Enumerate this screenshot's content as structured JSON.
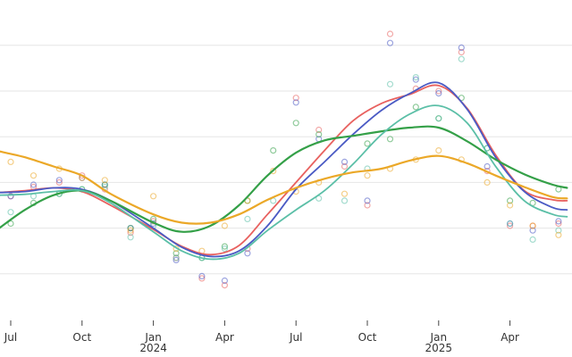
{
  "chart_data": {
    "type": "scatter",
    "title": "",
    "xlabel": "",
    "ylabel": "",
    "ylim": [
      0,
      7
    ],
    "yticks": [
      1,
      2,
      3,
      4,
      5,
      6
    ],
    "x_axis_labels": [
      {
        "label": "Jul",
        "year": "",
        "t": 2023.5
      },
      {
        "label": "Oct",
        "year": "",
        "t": 2023.75
      },
      {
        "label": "Jan",
        "year": "2024",
        "t": 2024.0
      },
      {
        "label": "Apr",
        "year": "",
        "t": 2024.25
      },
      {
        "label": "Jul",
        "year": "",
        "t": 2024.5
      },
      {
        "label": "Oct",
        "year": "",
        "t": 2024.75
      },
      {
        "label": "Jan",
        "year": "2025",
        "t": 2025.0
      },
      {
        "label": "Apr",
        "year": "",
        "t": 2025.25
      }
    ],
    "xlim": [
      2023.46,
      2025.45
    ],
    "series": [
      {
        "name": "red",
        "color": "#e8615f",
        "points": [
          [
            2023.5,
            2.7
          ],
          [
            2023.58,
            2.9
          ],
          [
            2023.67,
            3.0
          ],
          [
            2023.75,
            3.15
          ],
          [
            2023.83,
            2.85
          ],
          [
            2023.92,
            1.9
          ],
          [
            2024.0,
            2.15
          ],
          [
            2024.08,
            1.35
          ],
          [
            2024.17,
            0.9
          ],
          [
            2024.25,
            0.75
          ],
          [
            2024.33,
            1.55
          ],
          [
            2024.5,
            4.85
          ],
          [
            2024.58,
            4.15
          ],
          [
            2024.67,
            3.35
          ],
          [
            2024.75,
            2.5
          ],
          [
            2024.83,
            6.25
          ],
          [
            2024.92,
            5.05
          ],
          [
            2025.0,
            5.0
          ],
          [
            2025.08,
            5.85
          ],
          [
            2025.17,
            3.25
          ],
          [
            2025.25,
            2.05
          ],
          [
            2025.33,
            2.05
          ],
          [
            2025.42,
            2.1
          ]
        ],
        "curve": [
          [
            2023.46,
            2.78
          ],
          [
            2023.55,
            2.82
          ],
          [
            2023.65,
            2.88
          ],
          [
            2023.75,
            2.8
          ],
          [
            2023.85,
            2.5
          ],
          [
            2024.0,
            1.97
          ],
          [
            2024.1,
            1.6
          ],
          [
            2024.2,
            1.42
          ],
          [
            2024.3,
            1.62
          ],
          [
            2024.4,
            2.3
          ],
          [
            2024.5,
            3.0
          ],
          [
            2024.6,
            3.7
          ],
          [
            2024.7,
            4.35
          ],
          [
            2024.8,
            4.73
          ],
          [
            2024.9,
            4.93
          ],
          [
            2025.0,
            5.12
          ],
          [
            2025.1,
            4.62
          ],
          [
            2025.2,
            3.6
          ],
          [
            2025.3,
            2.82
          ],
          [
            2025.4,
            2.62
          ],
          [
            2025.45,
            2.6
          ]
        ]
      },
      {
        "name": "blue",
        "color": "#4a5ac4",
        "points": [
          [
            2023.5,
            2.7
          ],
          [
            2023.58,
            2.95
          ],
          [
            2023.67,
            3.05
          ],
          [
            2023.75,
            3.1
          ],
          [
            2023.83,
            2.95
          ],
          [
            2023.92,
            2.0
          ],
          [
            2024.0,
            2.1
          ],
          [
            2024.08,
            1.3
          ],
          [
            2024.17,
            0.95
          ],
          [
            2024.25,
            0.85
          ],
          [
            2024.33,
            1.45
          ],
          [
            2024.5,
            4.75
          ],
          [
            2024.58,
            3.95
          ],
          [
            2024.67,
            3.45
          ],
          [
            2024.75,
            2.6
          ],
          [
            2024.83,
            6.05
          ],
          [
            2024.92,
            5.25
          ],
          [
            2025.0,
            4.95
          ],
          [
            2025.08,
            5.95
          ],
          [
            2025.17,
            3.35
          ],
          [
            2025.25,
            2.1
          ],
          [
            2025.33,
            1.95
          ],
          [
            2025.42,
            2.15
          ]
        ],
        "curve": [
          [
            2023.46,
            2.78
          ],
          [
            2023.55,
            2.8
          ],
          [
            2023.65,
            2.88
          ],
          [
            2023.75,
            2.85
          ],
          [
            2023.85,
            2.6
          ],
          [
            2024.0,
            2.0
          ],
          [
            2024.1,
            1.58
          ],
          [
            2024.2,
            1.38
          ],
          [
            2024.3,
            1.5
          ],
          [
            2024.4,
            2.05
          ],
          [
            2024.5,
            2.85
          ],
          [
            2024.6,
            3.45
          ],
          [
            2024.7,
            4.05
          ],
          [
            2024.8,
            4.58
          ],
          [
            2024.9,
            4.95
          ],
          [
            2025.0,
            5.18
          ],
          [
            2025.1,
            4.6
          ],
          [
            2025.2,
            3.55
          ],
          [
            2025.3,
            2.8
          ],
          [
            2025.4,
            2.45
          ],
          [
            2025.45,
            2.4
          ]
        ]
      },
      {
        "name": "green",
        "color": "#34a048",
        "points": [
          [
            2023.5,
            2.1
          ],
          [
            2023.58,
            2.55
          ],
          [
            2023.67,
            2.75
          ],
          [
            2023.75,
            2.85
          ],
          [
            2023.83,
            2.95
          ],
          [
            2023.92,
            2.0
          ],
          [
            2024.0,
            2.2
          ],
          [
            2024.08,
            1.45
          ],
          [
            2024.17,
            1.35
          ],
          [
            2024.25,
            1.6
          ],
          [
            2024.33,
            2.6
          ],
          [
            2024.42,
            3.7
          ],
          [
            2024.5,
            4.3
          ],
          [
            2024.58,
            4.05
          ],
          [
            2024.75,
            3.85
          ],
          [
            2024.83,
            3.95
          ],
          [
            2024.92,
            4.65
          ],
          [
            2025.0,
            4.4
          ],
          [
            2025.08,
            4.85
          ],
          [
            2025.17,
            3.75
          ],
          [
            2025.25,
            2.6
          ],
          [
            2025.33,
            2.55
          ],
          [
            2025.42,
            2.85
          ]
        ],
        "curve": [
          [
            2023.46,
            2.0
          ],
          [
            2023.55,
            2.4
          ],
          [
            2023.65,
            2.72
          ],
          [
            2023.75,
            2.82
          ],
          [
            2023.85,
            2.6
          ],
          [
            2024.0,
            2.12
          ],
          [
            2024.1,
            1.92
          ],
          [
            2024.2,
            2.05
          ],
          [
            2024.3,
            2.5
          ],
          [
            2024.4,
            3.15
          ],
          [
            2024.5,
            3.65
          ],
          [
            2024.6,
            3.92
          ],
          [
            2024.7,
            4.02
          ],
          [
            2024.8,
            4.12
          ],
          [
            2024.9,
            4.2
          ],
          [
            2025.0,
            4.2
          ],
          [
            2025.1,
            3.9
          ],
          [
            2025.2,
            3.5
          ],
          [
            2025.3,
            3.18
          ],
          [
            2025.4,
            2.95
          ],
          [
            2025.45,
            2.88
          ]
        ]
      },
      {
        "name": "teal",
        "color": "#5bbfa7",
        "points": [
          [
            2023.5,
            2.35
          ],
          [
            2023.58,
            2.7
          ],
          [
            2023.67,
            2.75
          ],
          [
            2023.75,
            2.85
          ],
          [
            2023.83,
            2.9
          ],
          [
            2023.92,
            1.8
          ],
          [
            2024.0,
            2.05
          ],
          [
            2024.08,
            1.35
          ],
          [
            2024.17,
            1.35
          ],
          [
            2024.25,
            1.55
          ],
          [
            2024.33,
            2.2
          ],
          [
            2024.42,
            2.6
          ],
          [
            2024.58,
            2.65
          ],
          [
            2024.67,
            2.6
          ],
          [
            2024.75,
            3.3
          ],
          [
            2024.83,
            5.15
          ],
          [
            2024.92,
            5.3
          ],
          [
            2025.0,
            4.4
          ],
          [
            2025.08,
            5.7
          ],
          [
            2025.17,
            3.75
          ],
          [
            2025.25,
            2.1
          ],
          [
            2025.33,
            1.75
          ],
          [
            2025.42,
            1.95
          ]
        ],
        "curve": [
          [
            2023.46,
            2.72
          ],
          [
            2023.55,
            2.74
          ],
          [
            2023.65,
            2.8
          ],
          [
            2023.75,
            2.82
          ],
          [
            2023.85,
            2.55
          ],
          [
            2024.0,
            1.92
          ],
          [
            2024.1,
            1.5
          ],
          [
            2024.2,
            1.32
          ],
          [
            2024.3,
            1.45
          ],
          [
            2024.4,
            1.95
          ],
          [
            2024.5,
            2.4
          ],
          [
            2024.6,
            2.82
          ],
          [
            2024.7,
            3.4
          ],
          [
            2024.8,
            4.05
          ],
          [
            2024.9,
            4.5
          ],
          [
            2025.0,
            4.68
          ],
          [
            2025.1,
            4.3
          ],
          [
            2025.2,
            3.35
          ],
          [
            2025.3,
            2.6
          ],
          [
            2025.4,
            2.3
          ],
          [
            2025.45,
            2.25
          ]
        ]
      },
      {
        "name": "orange",
        "color": "#eba828",
        "points": [
          [
            2023.5,
            3.45
          ],
          [
            2023.58,
            3.15
          ],
          [
            2023.67,
            3.3
          ],
          [
            2023.75,
            3.1
          ],
          [
            2023.83,
            3.05
          ],
          [
            2023.92,
            1.95
          ],
          [
            2024.0,
            2.7
          ],
          [
            2024.08,
            1.55
          ],
          [
            2024.17,
            1.5
          ],
          [
            2024.25,
            2.05
          ],
          [
            2024.33,
            2.6
          ],
          [
            2024.42,
            3.25
          ],
          [
            2024.5,
            2.8
          ],
          [
            2024.58,
            3.0
          ],
          [
            2024.67,
            2.75
          ],
          [
            2024.75,
            3.15
          ],
          [
            2024.83,
            3.3
          ],
          [
            2024.92,
            3.5
          ],
          [
            2025.0,
            3.7
          ],
          [
            2025.08,
            3.5
          ],
          [
            2025.17,
            3.0
          ],
          [
            2025.25,
            2.5
          ],
          [
            2025.33,
            2.05
          ],
          [
            2025.42,
            1.85
          ]
        ],
        "curve": [
          [
            2023.46,
            3.68
          ],
          [
            2023.55,
            3.55
          ],
          [
            2023.65,
            3.35
          ],
          [
            2023.75,
            3.15
          ],
          [
            2023.85,
            2.75
          ],
          [
            2024.0,
            2.3
          ],
          [
            2024.1,
            2.12
          ],
          [
            2024.2,
            2.12
          ],
          [
            2024.3,
            2.3
          ],
          [
            2024.4,
            2.62
          ],
          [
            2024.5,
            2.88
          ],
          [
            2024.6,
            3.08
          ],
          [
            2024.7,
            3.22
          ],
          [
            2024.8,
            3.3
          ],
          [
            2024.9,
            3.48
          ],
          [
            2025.0,
            3.58
          ],
          [
            2025.1,
            3.42
          ],
          [
            2025.2,
            3.15
          ],
          [
            2025.3,
            2.9
          ],
          [
            2025.4,
            2.68
          ],
          [
            2025.45,
            2.65
          ]
        ]
      }
    ]
  }
}
